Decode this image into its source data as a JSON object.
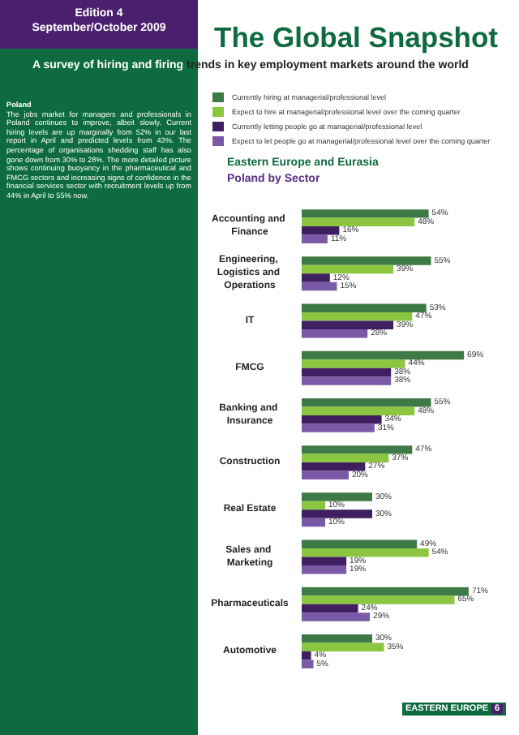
{
  "chart_data": {
    "type": "bar",
    "orientation": "horizontal",
    "title": "The Global Snapshot",
    "subtitle": "A survey of hiring and firing trends in key employment markets around the world",
    "annotations": [
      "Edition 4",
      "September/October 2009",
      "Poland",
      "The jobs market for managers and professionals in Poland continues to improve, albeit slowly. Current hiring levels are up marginally from 52% in our last report in April and predicted levels from 43%. The percentage of organisations shedding staff has also gone down from 30% to 28%. The more detailed picture shows continuing buoyancy in the pharmaceutical and FMCG sectors and increasing signs of confidence in the financial services sector with recruitment levels up from 44% in April to 55% now.",
      "Eastern Europe and Eurasia",
      "Poland by Sector",
      "EASTERN EUROPE",
      "6"
    ],
    "categories": [
      "Accounting and Finance",
      "Engineering, Logistics and Operations",
      "IT",
      "FMCG",
      "Banking and Insurance",
      "Construction",
      "Real Estate",
      "Sales and Marketing",
      "Pharmaceuticals",
      "Automotive"
    ],
    "series": [
      {
        "name": "Currently hiring at managerial/professional level",
        "color": "#3d7a45",
        "values": [
          54,
          55,
          53,
          69,
          55,
          47,
          30,
          49,
          71,
          30
        ],
        "value_labels": [
          "54%",
          "55%",
          "53%",
          "69%",
          "55%",
          "47%",
          "30%",
          "49%",
          "71%",
          "30%"
        ]
      },
      {
        "name": "Expect to hire at managerial/professional level over the coming quarter",
        "color": "#8cc540",
        "values": [
          48,
          39,
          47,
          44,
          48,
          37,
          10,
          54,
          65,
          35
        ],
        "value_labels": [
          "48%",
          "39%",
          "47%",
          "44%",
          "48%",
          "37%",
          "10%",
          "54%",
          "65%",
          "35%"
        ]
      },
      {
        "name": "Currently letting people go at managerial/professional level",
        "color": "#3f1f5f",
        "values": [
          16,
          12,
          39,
          38,
          34,
          27,
          30,
          19,
          24,
          4
        ],
        "value_labels": [
          "16%",
          "12%",
          "39%",
          "38%",
          "34%",
          "27%",
          "30%",
          "19%",
          "24%",
          "4%"
        ]
      },
      {
        "name": "Expect to let people go at managerial/professional level over the coming quarter",
        "color": "#7a5aa6",
        "values": [
          11,
          15,
          28,
          38,
          31,
          20,
          10,
          19,
          29,
          5
        ],
        "value_labels": [
          "11%",
          "15%",
          "28%",
          "38%",
          "31%",
          "20%",
          "10%",
          "19%",
          "29%",
          "5%"
        ]
      }
    ],
    "legend": "top",
    "tick_labels": "y"
  }
}
